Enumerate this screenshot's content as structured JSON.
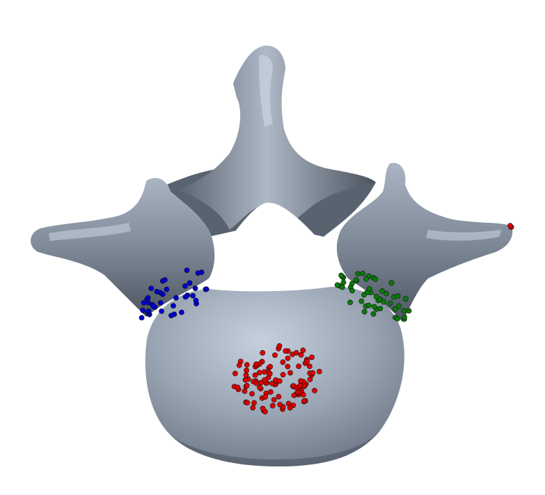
{
  "scene": {
    "subject": "vertebra-3d-model",
    "background_color": "#ffffff",
    "bone_color": "#7a8595",
    "bone_highlight_color": "#c6d0dd",
    "bone_shadow_color": "#3a414c"
  },
  "point_clusters": [
    {
      "name": "left-pedicle-cluster",
      "color": "#0000cc",
      "dot_count": 40
    },
    {
      "name": "right-pedicle-cluster",
      "color": "#0a7a0a",
      "dot_count": 50
    },
    {
      "name": "vertebral-body-cluster",
      "color": "#dd0000",
      "dot_count": 110
    },
    {
      "name": "transverse-tip-marker",
      "color": "#dd0000",
      "dot_count": 2
    }
  ]
}
